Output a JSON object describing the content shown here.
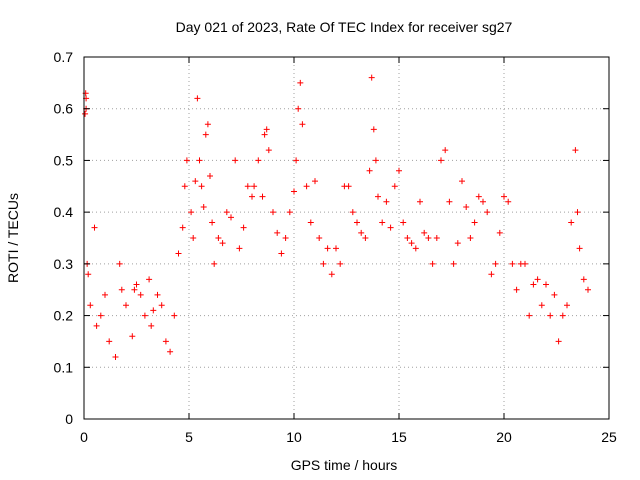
{
  "chart_data": {
    "type": "scatter",
    "title": "Day 021 of 2023, Rate Of TEC Index for receiver sg27",
    "xlabel": "GPS time / hours",
    "ylabel": "ROTI / TECUs",
    "xlim": [
      0,
      25
    ],
    "ylim": [
      0,
      0.7
    ],
    "xticks": [
      0,
      5,
      10,
      15,
      20,
      25
    ],
    "xtick_labels": [
      "0",
      "5",
      "10",
      "15",
      "20",
      "25"
    ],
    "yticks": [
      0,
      0.1,
      0.2,
      0.3,
      0.4,
      0.5,
      0.6,
      0.7
    ],
    "ytick_labels": [
      "0",
      "0.1",
      "0.2",
      "0.3",
      "0.4",
      "0.5",
      "0.6",
      "0.7"
    ],
    "grid": true,
    "marker": "+",
    "color": "#ff0000",
    "series": [
      {
        "points": [
          [
            0.05,
            0.59
          ],
          [
            0.08,
            0.63
          ],
          [
            0.1,
            0.6
          ],
          [
            0.1,
            0.62
          ],
          [
            0.15,
            0.3
          ],
          [
            0.2,
            0.28
          ],
          [
            0.3,
            0.22
          ],
          [
            0.5,
            0.37
          ],
          [
            0.6,
            0.18
          ],
          [
            0.8,
            0.2
          ],
          [
            1.0,
            0.24
          ],
          [
            1.2,
            0.15
          ],
          [
            1.5,
            0.12
          ],
          [
            1.7,
            0.3
          ],
          [
            1.8,
            0.25
          ],
          [
            2.0,
            0.22
          ],
          [
            2.3,
            0.16
          ],
          [
            2.4,
            0.25
          ],
          [
            2.5,
            0.26
          ],
          [
            2.7,
            0.24
          ],
          [
            2.9,
            0.2
          ],
          [
            3.1,
            0.27
          ],
          [
            3.2,
            0.18
          ],
          [
            3.3,
            0.21
          ],
          [
            3.5,
            0.24
          ],
          [
            3.7,
            0.22
          ],
          [
            3.9,
            0.15
          ],
          [
            4.1,
            0.13
          ],
          [
            4.3,
            0.2
          ],
          [
            4.5,
            0.32
          ],
          [
            4.7,
            0.37
          ],
          [
            4.8,
            0.45
          ],
          [
            4.9,
            0.5
          ],
          [
            5.1,
            0.4
          ],
          [
            5.2,
            0.35
          ],
          [
            5.3,
            0.46
          ],
          [
            5.4,
            0.62
          ],
          [
            5.5,
            0.5
          ],
          [
            5.6,
            0.45
          ],
          [
            5.7,
            0.41
          ],
          [
            5.8,
            0.55
          ],
          [
            5.9,
            0.57
          ],
          [
            6.0,
            0.47
          ],
          [
            6.1,
            0.38
          ],
          [
            6.2,
            0.3
          ],
          [
            6.4,
            0.35
          ],
          [
            6.6,
            0.34
          ],
          [
            6.8,
            0.4
          ],
          [
            7.0,
            0.39
          ],
          [
            7.2,
            0.5
          ],
          [
            7.4,
            0.33
          ],
          [
            7.6,
            0.37
          ],
          [
            7.8,
            0.45
          ],
          [
            8.0,
            0.43
          ],
          [
            8.1,
            0.45
          ],
          [
            8.3,
            0.5
          ],
          [
            8.5,
            0.43
          ],
          [
            8.6,
            0.55
          ],
          [
            8.7,
            0.56
          ],
          [
            8.8,
            0.52
          ],
          [
            9.0,
            0.4
          ],
          [
            9.2,
            0.36
          ],
          [
            9.4,
            0.32
          ],
          [
            9.6,
            0.35
          ],
          [
            9.8,
            0.4
          ],
          [
            10.0,
            0.44
          ],
          [
            10.1,
            0.5
          ],
          [
            10.2,
            0.6
          ],
          [
            10.3,
            0.65
          ],
          [
            10.4,
            0.57
          ],
          [
            10.6,
            0.45
          ],
          [
            10.8,
            0.38
          ],
          [
            11.0,
            0.46
          ],
          [
            11.2,
            0.35
          ],
          [
            11.4,
            0.3
          ],
          [
            11.6,
            0.33
          ],
          [
            11.8,
            0.28
          ],
          [
            12.0,
            0.33
          ],
          [
            12.2,
            0.3
          ],
          [
            12.4,
            0.45
          ],
          [
            12.6,
            0.45
          ],
          [
            12.8,
            0.4
          ],
          [
            13.0,
            0.38
          ],
          [
            13.2,
            0.36
          ],
          [
            13.4,
            0.35
          ],
          [
            13.6,
            0.48
          ],
          [
            13.7,
            0.66
          ],
          [
            13.8,
            0.56
          ],
          [
            13.9,
            0.5
          ],
          [
            14.0,
            0.43
          ],
          [
            14.2,
            0.38
          ],
          [
            14.4,
            0.42
          ],
          [
            14.6,
            0.37
          ],
          [
            14.8,
            0.45
          ],
          [
            15.0,
            0.48
          ],
          [
            15.2,
            0.38
          ],
          [
            15.4,
            0.35
          ],
          [
            15.6,
            0.34
          ],
          [
            15.8,
            0.33
          ],
          [
            16.0,
            0.42
          ],
          [
            16.2,
            0.36
          ],
          [
            16.4,
            0.35
          ],
          [
            16.6,
            0.3
          ],
          [
            16.8,
            0.35
          ],
          [
            17.0,
            0.5
          ],
          [
            17.2,
            0.52
          ],
          [
            17.4,
            0.42
          ],
          [
            17.6,
            0.3
          ],
          [
            17.8,
            0.34
          ],
          [
            18.0,
            0.46
          ],
          [
            18.2,
            0.41
          ],
          [
            18.4,
            0.35
          ],
          [
            18.6,
            0.38
          ],
          [
            18.8,
            0.43
          ],
          [
            19.0,
            0.42
          ],
          [
            19.2,
            0.4
          ],
          [
            19.4,
            0.28
          ],
          [
            19.6,
            0.3
          ],
          [
            19.8,
            0.36
          ],
          [
            20.0,
            0.43
          ],
          [
            20.2,
            0.42
          ],
          [
            20.4,
            0.3
          ],
          [
            20.6,
            0.25
          ],
          [
            20.8,
            0.3
          ],
          [
            21.0,
            0.3
          ],
          [
            21.2,
            0.2
          ],
          [
            21.4,
            0.26
          ],
          [
            21.6,
            0.27
          ],
          [
            21.8,
            0.22
          ],
          [
            22.0,
            0.26
          ],
          [
            22.2,
            0.2
          ],
          [
            22.4,
            0.24
          ],
          [
            22.6,
            0.15
          ],
          [
            22.8,
            0.2
          ],
          [
            23.0,
            0.22
          ],
          [
            23.2,
            0.38
          ],
          [
            23.4,
            0.52
          ],
          [
            23.5,
            0.4
          ],
          [
            23.6,
            0.33
          ],
          [
            23.8,
            0.27
          ],
          [
            24.0,
            0.25
          ]
        ]
      }
    ]
  }
}
